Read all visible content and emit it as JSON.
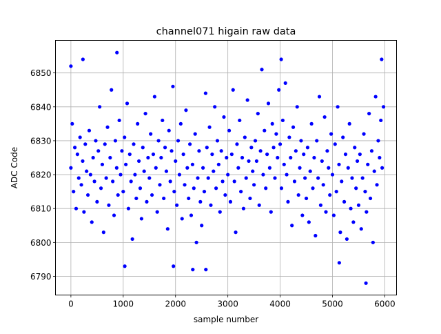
{
  "chart_data": {
    "type": "scatter",
    "title": "channel071 higain raw data",
    "xlabel": "sample number",
    "ylabel": "ADC Code",
    "xlim": [
      -295,
      6225
    ],
    "ylim": [
      6784.5,
      6859.6
    ],
    "xticks": [
      0,
      1000,
      2000,
      3000,
      4000,
      5000,
      6000
    ],
    "yticks": [
      6790,
      6800,
      6810,
      6820,
      6830,
      6840,
      6850
    ],
    "grid": true,
    "marker_color": "#0000ff",
    "series": [
      {
        "x": [
          0,
          25,
          50,
          75,
          100,
          125,
          150,
          175,
          200,
          225,
          250,
          275,
          300,
          325,
          350,
          375,
          400,
          425,
          450,
          475,
          500,
          525,
          550,
          575,
          600,
          625,
          650,
          675,
          700,
          725,
          750,
          775,
          800,
          825,
          850,
          875,
          900,
          925,
          950,
          975,
          1000,
          1025,
          1050,
          1075,
          1100,
          1125,
          1150,
          1175,
          1200,
          1225,
          1250,
          1275,
          1300,
          1325,
          1350,
          1375,
          1400,
          1425,
          1450,
          1475,
          1500,
          1525,
          1550,
          1575,
          1600,
          1625,
          1650,
          1675,
          1700,
          1725,
          1750,
          1775,
          1800,
          1825,
          1850,
          1875,
          1900,
          1925,
          1950,
          1975,
          2000,
          2025,
          2050,
          2075,
          2100,
          2125,
          2150,
          2175,
          2200,
          2225,
          2250,
          2275,
          2300,
          2325,
          2350,
          2375,
          2400,
          2425,
          2450,
          2475,
          2500,
          2525,
          2550,
          2575,
          2600,
          2625,
          2650,
          2675,
          2700,
          2725,
          2750,
          2775,
          2800,
          2825,
          2850,
          2875,
          2900,
          2925,
          2950,
          2975,
          3000,
          3025,
          3050,
          3075,
          3100,
          3125,
          3150,
          3175,
          3200,
          3225,
          3250,
          3275,
          3300,
          3325,
          3350,
          3375,
          3400,
          3425,
          3450,
          3475,
          3500,
          3525,
          3550,
          3575,
          3600,
          3625,
          3650,
          3675,
          3700,
          3725,
          3750,
          3775,
          3800,
          3825,
          3850,
          3875,
          3900,
          3925,
          3950,
          3975,
          4000,
          4025,
          4050,
          4075,
          4100,
          4125,
          4150,
          4175,
          4200,
          4225,
          4250,
          4275,
          4300,
          4325,
          4350,
          4375,
          4400,
          4425,
          4450,
          4475,
          4500,
          4525,
          4550,
          4575,
          4600,
          4625,
          4650,
          4675,
          4700,
          4725,
          4750,
          4775,
          4800,
          4825,
          4850,
          4875,
          4900,
          4925,
          4950,
          4975,
          5000,
          5025,
          5050,
          5075,
          5100,
          5125,
          5150,
          5175,
          5200,
          5225,
          5250,
          5275,
          5300,
          5325,
          5350,
          5375,
          5400,
          5425,
          5450,
          5475,
          5500,
          5525,
          5550,
          5575,
          5600,
          5625,
          5650,
          5675,
          5700,
          5725,
          5750,
          5775,
          5800,
          5825,
          5850,
          5875,
          5900,
          5925,
          5950,
          5975,
          0,
          230,
          880,
          1030,
          1960,
          2330,
          2580,
          4020,
          5130,
          5640,
          5940
        ],
        "y": [
          6822,
          6835,
          6815,
          6828,
          6810,
          6826,
          6819,
          6831,
          6817,
          6824,
          6809,
          6829,
          6821,
          6814,
          6833,
          6820,
          6806,
          6825,
          6818,
          6830,
          6812,
          6827,
          6840,
          6816,
          6823,
          6803,
          6829,
          6819,
          6834,
          6811,
          6825,
          6845,
          6818,
          6808,
          6830,
          6822,
          6814,
          6836,
          6820,
          6827,
          6815,
          6831,
          6823,
          6841,
          6810,
          6826,
          6818,
          6801,
          6829,
          6820,
          6813,
          6835,
          6824,
          6816,
          6807,
          6828,
          6821,
          6838,
          6812,
          6825,
          6819,
          6832,
          6814,
          6826,
          6843,
          6822,
          6809,
          6830,
          6817,
          6825,
          6836,
          6813,
          6828,
          6821,
          6804,
          6833,
          6818,
          6827,
          6846,
          6815,
          6824,
          6811,
          6830,
          6820,
          6835,
          6807,
          6826,
          6817,
          6839,
          6822,
          6813,
          6829,
          6808,
          6823,
          6816,
          6832,
          6800,
          6819,
          6827,
          6812,
          6805,
          6822,
          6815,
          6844,
          6828,
          6819,
          6834,
          6811,
          6826,
          6821,
          6840,
          6816,
          6830,
          6823,
          6809,
          6827,
          6818,
          6837,
          6814,
          6825,
          6820,
          6833,
          6812,
          6826,
          6845,
          6818,
          6803,
          6829,
          6822,
          6836,
          6815,
          6825,
          6810,
          6831,
          6819,
          6842,
          6824,
          6813,
          6828,
          6821,
          6817,
          6830,
          6824,
          6838,
          6811,
          6827,
          6851,
          6820,
          6833,
          6816,
          6826,
          6841,
          6822,
          6809,
          6835,
          6828,
          6819,
          6832,
          6825,
          6845,
          6829,
          6816,
          6836,
          6823,
          6847,
          6820,
          6812,
          6831,
          6825,
          6805,
          6834,
          6818,
          6827,
          6840,
          6814,
          6822,
          6830,
          6808,
          6826,
          6819,
          6813,
          6828,
          6806,
          6821,
          6835,
          6816,
          6825,
          6802,
          6830,
          6819,
          6843,
          6811,
          6824,
          6817,
          6837,
          6809,
          6827,
          6822,
          6814,
          6832,
          6820,
          6808,
          6829,
          6815,
          6840,
          6823,
          6803,
          6818,
          6831,
          6812,
          6826,
          6801,
          6822,
          6835,
          6810,
          6819,
          6806,
          6828,
          6816,
          6824,
          6811,
          6826,
          6804,
          6819,
          6832,
          6815,
          6809,
          6823,
          6838,
          6813,
          6827,
          6800,
          6821,
          6843,
          6817,
          6830,
          6825,
          6836,
          6822,
          6840,
          6852,
          6854,
          6856,
          6793,
          6793,
          6792,
          6792,
          6854,
          6794,
          6788,
          6854
        ]
      }
    ]
  }
}
